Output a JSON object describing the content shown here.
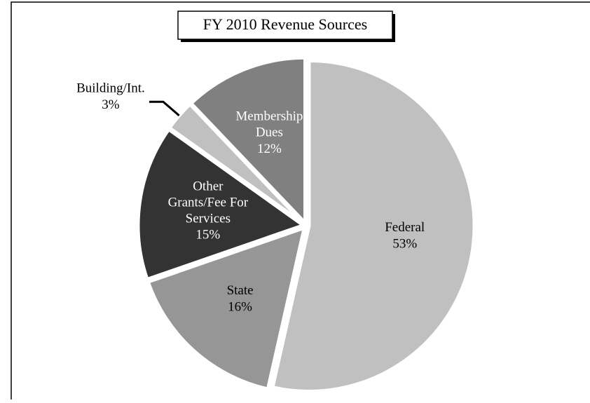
{
  "chart_data": {
    "type": "pie",
    "title": "FY 2010 Revenue Sources",
    "categories": [
      "Federal",
      "State",
      "Other Grants/Fee For Services",
      "Building/Int.",
      "Membership Dues"
    ],
    "values": [
      53,
      16,
      15,
      3,
      12
    ],
    "value_labels": [
      "53%",
      "16%",
      "15%",
      "3%",
      "12%"
    ],
    "colors": [
      "#c0c0c0",
      "#969696",
      "#333333",
      "#c0c0c0",
      "#808080"
    ]
  }
}
